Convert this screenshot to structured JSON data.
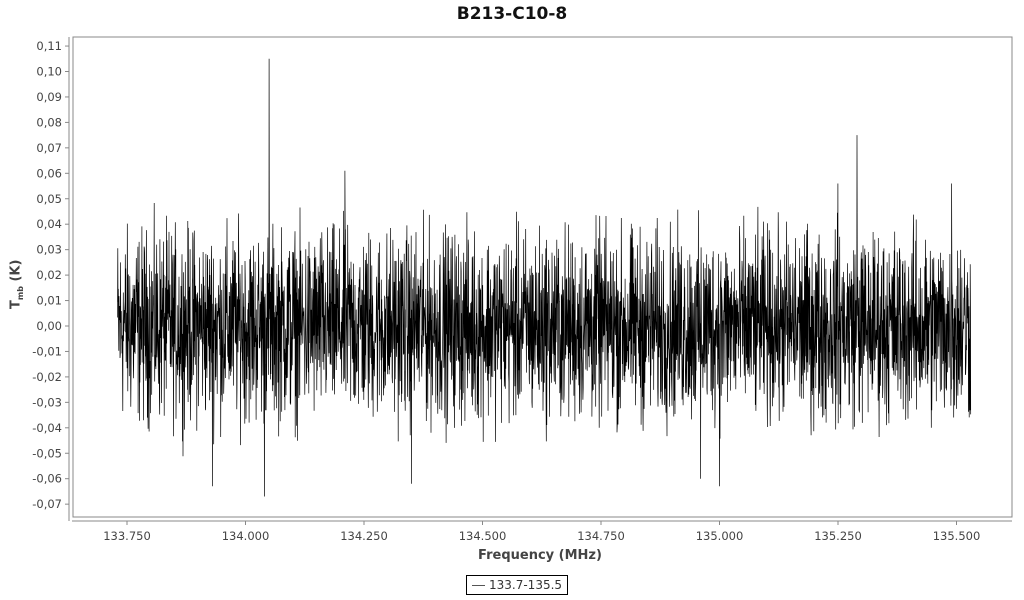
{
  "chart_data": {
    "type": "line",
    "title": "B213-C10-8",
    "xlabel": "Frequency (MHz)",
    "ylabel_main": "T",
    "ylabel_sub": "mb",
    "ylabel_unit": "(K)",
    "xlim": [
      133.64,
      135.61
    ],
    "ylim": [
      -0.075,
      0.115
    ],
    "x_ticks": [
      "133.750",
      "134.000",
      "134.250",
      "134.500",
      "134.750",
      "135.000",
      "135.250",
      "135.500"
    ],
    "x_tick_values": [
      133.75,
      134.0,
      134.25,
      134.5,
      134.75,
      135.0,
      135.25,
      135.5
    ],
    "y_ticks": [
      "0,11",
      "0,10",
      "0,09",
      "0,08",
      "0,07",
      "0,06",
      "0,05",
      "0,04",
      "0,03",
      "0,02",
      "0,01",
      "0,00",
      "-0,01",
      "-0,02",
      "-0,03",
      "-0,04",
      "-0,05",
      "-0,06",
      "-0,07"
    ],
    "y_tick_values": [
      0.11,
      0.1,
      0.09,
      0.08,
      0.07,
      0.06,
      0.05,
      0.04,
      0.03,
      0.02,
      0.01,
      0.0,
      -0.01,
      -0.02,
      -0.03,
      -0.04,
      -0.05,
      -0.06,
      -0.07
    ],
    "grid": false,
    "legend_position": "bottom-center",
    "series": [
      {
        "name": "133.7-135.5",
        "color": "#000000",
        "x_range": [
          133.73,
          135.53
        ],
        "noise_rms": 0.018,
        "baseline": 0.0,
        "peaks": [
          {
            "x": 134.05,
            "y": 0.105
          },
          {
            "x": 135.29,
            "y": 0.075
          },
          {
            "x": 134.21,
            "y": 0.061
          },
          {
            "x": 135.25,
            "y": 0.056
          },
          {
            "x": 135.49,
            "y": 0.056
          },
          {
            "x": 134.04,
            "y": -0.067
          },
          {
            "x": 133.93,
            "y": -0.063
          },
          {
            "x": 135.0,
            "y": -0.063
          },
          {
            "x": 134.35,
            "y": -0.062
          },
          {
            "x": 134.96,
            "y": -0.06
          }
        ]
      }
    ]
  }
}
